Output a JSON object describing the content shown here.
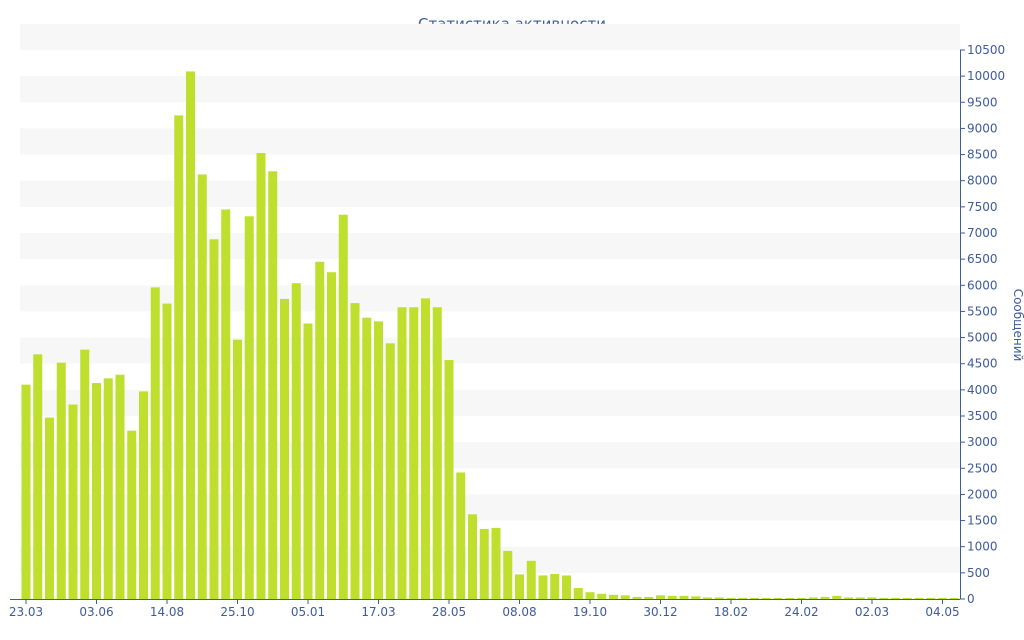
{
  "chart_data": {
    "type": "bar",
    "title": "Статистика активности",
    "ylabel": "Сообщений",
    "xlabel": "",
    "bar_color": "#bedf2e",
    "text_color": "#3e5b9c",
    "band_color": "#f7f7f7",
    "ylim": [
      0,
      10500
    ],
    "y_ticks": [
      0,
      500,
      1000,
      1500,
      2000,
      2500,
      3000,
      3500,
      4000,
      4500,
      5000,
      5500,
      6000,
      6500,
      7000,
      7500,
      8000,
      8500,
      9000,
      9500,
      10000,
      10500
    ],
    "y_axis_side": "right",
    "grid": "alternating horizontal bands",
    "x_tick_labels": [
      {
        "index": 0,
        "label": "23.03"
      },
      {
        "index": 6,
        "label": "03.06"
      },
      {
        "index": 12,
        "label": "14.08"
      },
      {
        "index": 18,
        "label": "25.10"
      },
      {
        "index": 24,
        "label": "05.01"
      },
      {
        "index": 30,
        "label": "17.03"
      },
      {
        "index": 36,
        "label": "28.05"
      },
      {
        "index": 42,
        "label": "08.08"
      },
      {
        "index": 48,
        "label": "19.10"
      },
      {
        "index": 54,
        "label": "30.12"
      },
      {
        "index": 60,
        "label": "18.02"
      },
      {
        "index": 66,
        "label": "24.02"
      },
      {
        "index": 72,
        "label": "02.03"
      },
      {
        "index": 78,
        "label": "04.05"
      }
    ],
    "values": [
      4100,
      4680,
      3470,
      4520,
      3720,
      4770,
      4130,
      4220,
      4290,
      3220,
      3970,
      5960,
      5650,
      9250,
      10090,
      8120,
      6880,
      7450,
      4960,
      7320,
      8530,
      8180,
      5740,
      6040,
      5270,
      6450,
      6250,
      7350,
      5660,
      5380,
      5310,
      4890,
      5580,
      5580,
      5750,
      5580,
      4570,
      2420,
      1620,
      1340,
      1360,
      920,
      470,
      730,
      450,
      480,
      450,
      210,
      130,
      100,
      80,
      70,
      40,
      40,
      70,
      60,
      60,
      50,
      30,
      30,
      20,
      20,
      20,
      20,
      20,
      20,
      20,
      30,
      40,
      60,
      30,
      30,
      30,
      20,
      20,
      20,
      20,
      20,
      20,
      20
    ]
  }
}
